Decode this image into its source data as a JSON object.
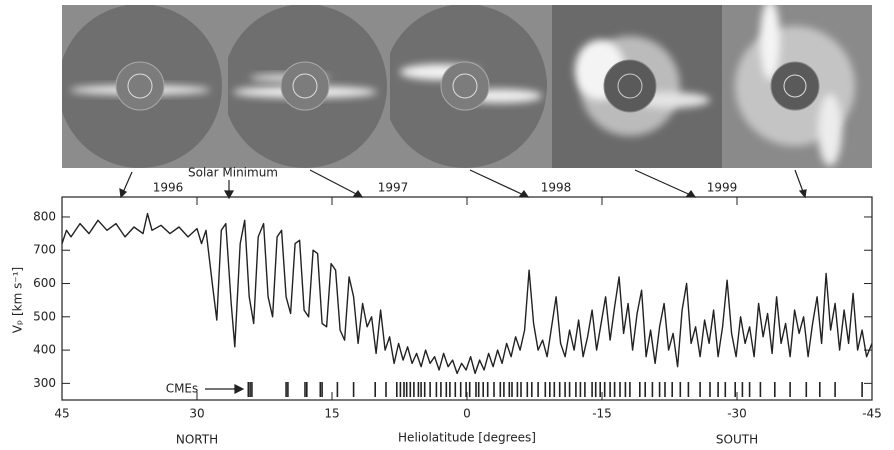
{
  "chart_data": {
    "type": "line",
    "x_label": "Heliolatitude [degrees]",
    "y_label": "Vₚ [km s⁻¹]",
    "region_labels": [
      "NORTH",
      "SOUTH"
    ],
    "top_axis_labels": [
      "1996",
      "1997",
      "1998",
      "1999"
    ],
    "annotation": "Solar Minimum",
    "color": "#222222",
    "xlim": [
      45,
      -45
    ],
    "ylim": [
      250,
      860
    ],
    "xticks": [
      45,
      30,
      15,
      0,
      -15,
      -30,
      -45
    ],
    "yticks": [
      300,
      400,
      500,
      600,
      700,
      800
    ],
    "x": [
      45,
      44.5,
      44,
      43,
      42,
      41,
      40,
      39,
      38,
      37,
      36,
      35.5,
      35,
      34,
      33,
      32,
      31,
      30,
      29.5,
      29,
      28.3,
      27.8,
      27.3,
      26.8,
      26.2,
      25.8,
      25.2,
      24.7,
      24.2,
      23.7,
      23.2,
      22.6,
      22.1,
      21.6,
      21.1,
      20.6,
      20.1,
      19.6,
      19.1,
      18.6,
      18.1,
      17.6,
      17.1,
      16.6,
      16.1,
      15.6,
      15.1,
      14.6,
      14.1,
      13.6,
      13.1,
      12.6,
      12.1,
      11.6,
      11.1,
      10.6,
      10.1,
      9.6,
      9.1,
      8.6,
      8.1,
      7.6,
      7.1,
      6.6,
      6.1,
      5.6,
      5.1,
      4.6,
      4.1,
      3.6,
      3.1,
      2.6,
      2.1,
      1.6,
      1.1,
      0.6,
      0.1,
      -0.4,
      -0.9,
      -1.4,
      -1.9,
      -2.4,
      -2.9,
      -3.4,
      -3.9,
      -4.4,
      -4.9,
      -5.4,
      -5.9,
      -6.4,
      -6.9,
      -7.4,
      -7.9,
      -8.4,
      -8.9,
      -9.4,
      -9.9,
      -10.4,
      -10.9,
      -11.4,
      -11.9,
      -12.4,
      -12.9,
      -13.4,
      -13.9,
      -14.4,
      -14.9,
      -15.4,
      -15.9,
      -16.4,
      -16.9,
      -17.4,
      -17.9,
      -18.4,
      -18.9,
      -19.4,
      -19.9,
      -20.4,
      -20.9,
      -21.4,
      -21.9,
      -22.4,
      -22.9,
      -23.4,
      -23.9,
      -24.4,
      -24.9,
      -25.4,
      -25.9,
      -26.4,
      -26.9,
      -27.4,
      -27.9,
      -28.4,
      -28.9,
      -29.4,
      -29.9,
      -30.4,
      -30.9,
      -31.4,
      -31.9,
      -32.4,
      -32.9,
      -33.4,
      -33.9,
      -34.4,
      -34.9,
      -35.4,
      -35.9,
      -36.4,
      -36.9,
      -37.4,
      -37.9,
      -38.4,
      -38.9,
      -39.4,
      -39.9,
      -40.4,
      -40.9,
      -41.4,
      -41.9,
      -42.4,
      -42.9,
      -43.4,
      -43.9,
      -44.4,
      -45
    ],
    "values": [
      720,
      760,
      740,
      780,
      750,
      790,
      760,
      780,
      740,
      770,
      750,
      810,
      760,
      775,
      750,
      770,
      740,
      765,
      720,
      760,
      600,
      490,
      760,
      780,
      540,
      410,
      720,
      790,
      560,
      480,
      740,
      780,
      560,
      500,
      740,
      760,
      560,
      510,
      720,
      730,
      520,
      500,
      700,
      690,
      480,
      470,
      660,
      640,
      460,
      430,
      620,
      560,
      420,
      540,
      470,
      500,
      390,
      520,
      400,
      440,
      360,
      420,
      370,
      410,
      360,
      390,
      350,
      400,
      360,
      380,
      340,
      390,
      350,
      370,
      330,
      360,
      340,
      380,
      330,
      370,
      340,
      390,
      350,
      400,
      360,
      420,
      380,
      440,
      400,
      460,
      640,
      480,
      400,
      430,
      380,
      470,
      560,
      420,
      380,
      460,
      400,
      490,
      380,
      440,
      520,
      400,
      480,
      560,
      430,
      530,
      620,
      450,
      540,
      400,
      510,
      580,
      380,
      460,
      360,
      470,
      540,
      400,
      450,
      350,
      520,
      600,
      420,
      470,
      380,
      490,
      420,
      520,
      380,
      470,
      610,
      450,
      380,
      500,
      420,
      470,
      380,
      540,
      440,
      510,
      390,
      560,
      420,
      480,
      380,
      520,
      450,
      500,
      380,
      480,
      560,
      420,
      630,
      460,
      540,
      400,
      520,
      420,
      570,
      400,
      460,
      380,
      420
    ],
    "cmes": {
      "label": "CMEs",
      "x": [
        24.3,
        24.1,
        23.9,
        20.1,
        19.9,
        18.0,
        17.8,
        16.3,
        16.1,
        14.4,
        12.6,
        10.2,
        9.0,
        7.8,
        7.4,
        7.0,
        6.7,
        6.3,
        5.9,
        5.4,
        5.1,
        4.7,
        4.1,
        3.4,
        2.9,
        2.3,
        1.9,
        1.3,
        0.7,
        0.1,
        -0.3,
        -1.0,
        -1.3,
        -1.8,
        -2.3,
        -3.0,
        -3.7,
        -4.1,
        -4.7,
        -5.0,
        -5.6,
        -6.0,
        -6.7,
        -7.2,
        -7.9,
        -8.7,
        -9.2,
        -9.7,
        -10.3,
        -10.9,
        -11.4,
        -12.1,
        -12.6,
        -13.1,
        -13.9,
        -14.3,
        -14.8,
        -15.3,
        -15.9,
        -16.4,
        -17.0,
        -17.6,
        -18.1,
        -19.2,
        -19.8,
        -20.6,
        -21.4,
        -22.0,
        -22.8,
        -23.7,
        -24.6,
        -25.9,
        -27.0,
        -27.9,
        -28.7,
        -29.8,
        -30.6,
        -31.4,
        -32.6,
        -34.2,
        -35.9,
        -37.7,
        -39.2,
        -40.9,
        -43.9
      ]
    }
  }
}
